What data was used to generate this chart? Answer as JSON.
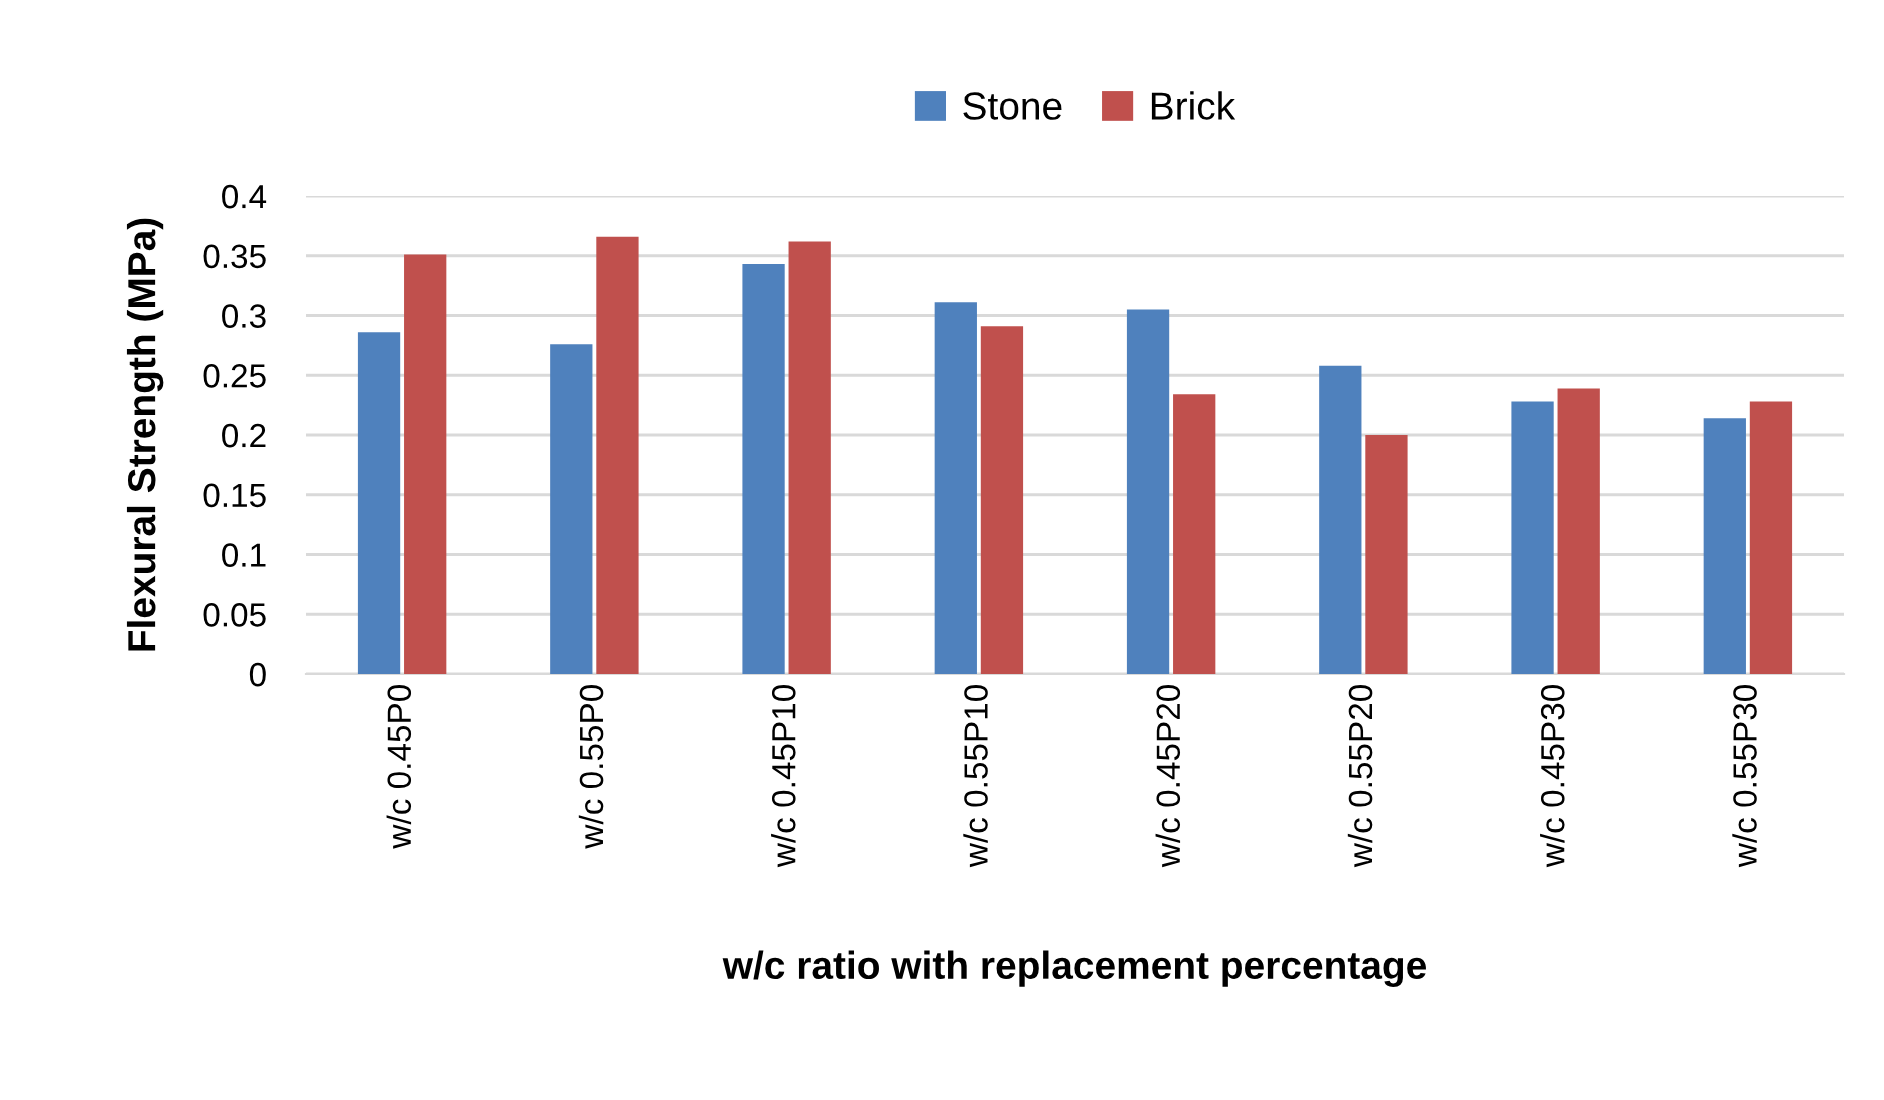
{
  "chart_data": {
    "type": "bar",
    "xlabel": "w/c ratio with replacement percentage",
    "ylabel": "Flexural Strength (MPa)",
    "categories": [
      "w/c 0.45P0",
      "w/c 0.55P0",
      "w/c 0.45P10",
      "w/c 0.55P10",
      "w/c 0.45P20",
      "w/c 0.55P20",
      "w/c 0.45P30",
      "w/c 0.55P30"
    ],
    "series": [
      {
        "name": "Stone",
        "color": "#4f81bd",
        "values": [
          0.286,
          0.276,
          0.343,
          0.311,
          0.305,
          0.258,
          0.228,
          0.214
        ]
      },
      {
        "name": "Brick",
        "color": "#c0504d",
        "values": [
          0.351,
          0.366,
          0.362,
          0.291,
          0.234,
          0.2,
          0.239,
          0.228
        ]
      }
    ],
    "ylim": [
      0,
      0.4
    ],
    "yticks": [
      0,
      0.05,
      0.1,
      0.15,
      0.2,
      0.25,
      0.3,
      0.35,
      0.4
    ],
    "grid": "y",
    "legend": "top"
  }
}
